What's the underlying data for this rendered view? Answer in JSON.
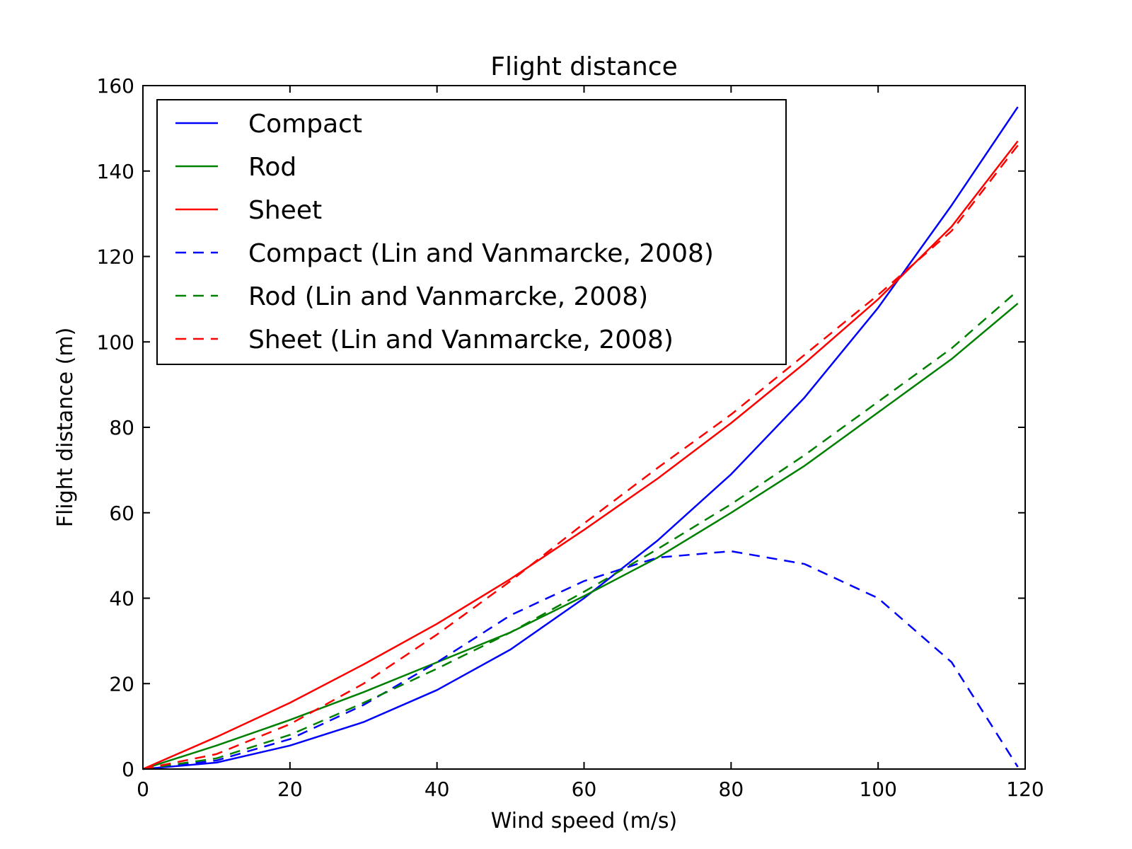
{
  "chart_data": {
    "type": "line",
    "title": "Flight distance",
    "xlabel": "Wind speed (m/s)",
    "ylabel": "Flight distance (m)",
    "xlim": [
      0,
      120
    ],
    "ylim": [
      0,
      160
    ],
    "xticks": [
      0,
      20,
      40,
      60,
      80,
      100,
      120
    ],
    "yticks": [
      0,
      20,
      40,
      60,
      80,
      100,
      120,
      140,
      160
    ],
    "grid": false,
    "legend_position": "top-left",
    "x": [
      0,
      10,
      20,
      30,
      40,
      50,
      60,
      70,
      80,
      90,
      100,
      110,
      119
    ],
    "series": [
      {
        "name": "Compact",
        "color": "#0000ff",
        "dash": "solid",
        "values": [
          0,
          1.5,
          5.5,
          11,
          18.5,
          28,
          40,
          53.5,
          69,
          87,
          108,
          132,
          155
        ]
      },
      {
        "name": "Rod",
        "color": "#008000",
        "dash": "solid",
        "values": [
          0,
          5.5,
          11.5,
          18,
          25,
          32,
          40.5,
          49.5,
          60,
          71,
          83.5,
          96,
          109
        ]
      },
      {
        "name": "Sheet",
        "color": "#ff0000",
        "dash": "solid",
        "values": [
          0,
          7.5,
          15.5,
          24.5,
          34,
          44.5,
          56,
          68,
          81,
          95,
          110,
          127,
          147
        ]
      },
      {
        "name": "Compact (Lin and Vanmarcke, 2008)",
        "color": "#0000ff",
        "dash": "dashed",
        "values": [
          0,
          2,
          7,
          15,
          25,
          36,
          44,
          49.5,
          51,
          48,
          40,
          25,
          0.5
        ]
      },
      {
        "name": "Rod (Lin and Vanmarcke, 2008)",
        "color": "#008000",
        "dash": "dashed",
        "values": [
          0,
          2.5,
          8,
          15.5,
          23.5,
          32,
          41.5,
          51.5,
          62,
          73.5,
          86,
          98.5,
          112
        ]
      },
      {
        "name": "Sheet (Lin and Vanmarcke, 2008)",
        "color": "#ff0000",
        "dash": "dashed",
        "values": [
          0,
          3.5,
          10.5,
          20,
          31.5,
          44,
          57.5,
          70.5,
          83,
          97,
          111,
          126,
          146
        ]
      }
    ]
  }
}
